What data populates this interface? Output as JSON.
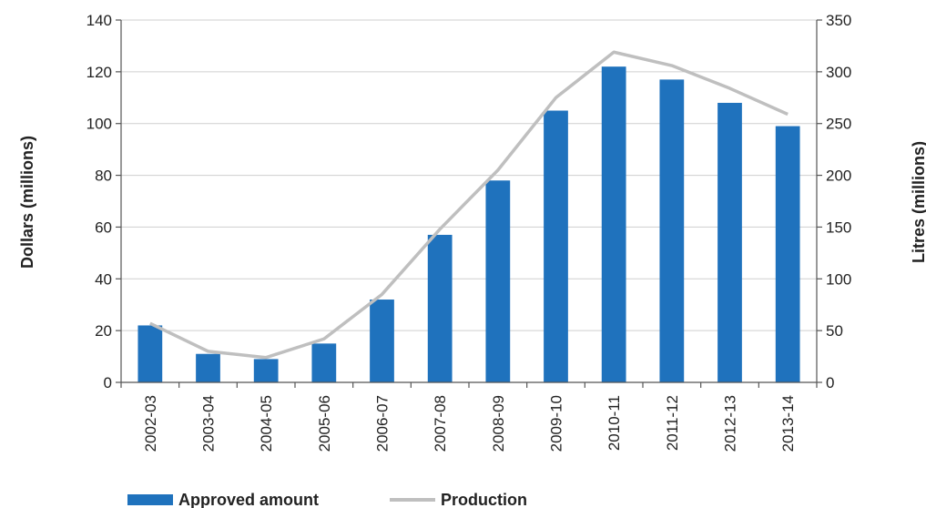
{
  "chart_data": {
    "type": "bar",
    "categories": [
      "2002-03",
      "2003-04",
      "2004-05",
      "2005-06",
      "2006-07",
      "2007-08",
      "2008-09",
      "2009-10",
      "2010-11",
      "2011-12",
      "2012-13",
      "2013-14"
    ],
    "series": [
      {
        "name": "Approved amount",
        "type": "bar",
        "axis": "left",
        "color": "#1f72bd",
        "values": [
          22,
          11,
          9,
          15,
          32,
          57,
          78,
          105,
          122,
          117,
          108,
          99
        ]
      },
      {
        "name": "Production",
        "type": "line",
        "axis": "right",
        "color": "#bfbfbf",
        "values": [
          57,
          30,
          24,
          42,
          85,
          148,
          205,
          275,
          319,
          306,
          284,
          259
        ]
      }
    ],
    "ylabel": "Dollars (millions)",
    "y2label": "Litres (millions)",
    "ylim": [
      0,
      140
    ],
    "yticks": [
      0,
      20,
      40,
      60,
      80,
      100,
      120,
      140
    ],
    "y2lim": [
      0,
      350
    ],
    "y2ticks": [
      0,
      50,
      100,
      150,
      200,
      250,
      300,
      350
    ],
    "grid": true,
    "legend_position": "bottom-left"
  }
}
